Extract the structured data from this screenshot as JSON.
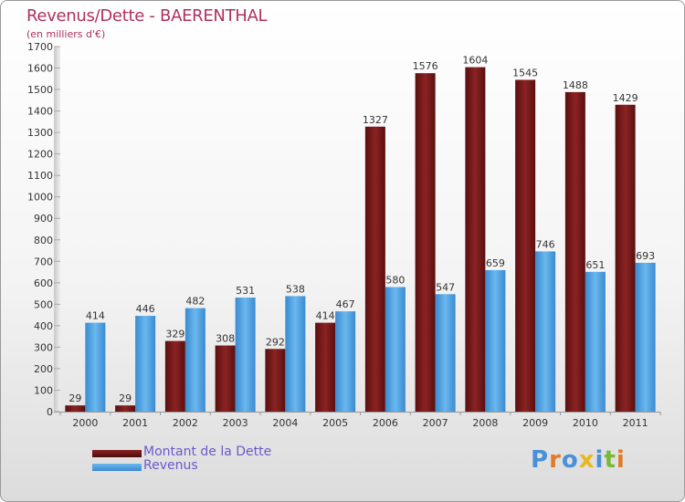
{
  "page": {
    "title": "Revenus/Dette - BAERENTHAL",
    "subtitle": "(en milliers d'€)"
  },
  "legend": {
    "debt_label": "Montant de la Dette",
    "revenue_label": "Revenus"
  },
  "logo": {
    "letters": [
      "P",
      "r",
      "o",
      "x",
      "i",
      "t",
      "i"
    ],
    "colors": [
      "#4a90d9",
      "#e07b28",
      "#4a90d9",
      "#e8b820",
      "#4a90d9",
      "#7ab83a",
      "#e07b28"
    ]
  },
  "colors": {
    "debt": "#7a1818",
    "debt_light": "#9a2a2a",
    "revenue": "#4a9fe0",
    "revenue_light": "#6cb8ee",
    "axis_text": "#333333"
  },
  "chart_data": {
    "type": "bar",
    "title": "Revenus/Dette - BAERENTHAL",
    "subtitle": "(en milliers d'€)",
    "categories": [
      "2000",
      "2001",
      "2002",
      "2003",
      "2004",
      "2005",
      "2006",
      "2007",
      "2008",
      "2009",
      "2010",
      "2011"
    ],
    "series": [
      {
        "name": "Montant de la Dette",
        "values": [
          29,
          29,
          329,
          308,
          292,
          414,
          1327,
          1576,
          1604,
          1545,
          1488,
          1429
        ]
      },
      {
        "name": "Revenus",
        "values": [
          414,
          446,
          482,
          531,
          538,
          467,
          580,
          547,
          659,
          746,
          651,
          693
        ]
      }
    ],
    "ylim": [
      0,
      1700
    ],
    "yticks": [
      0,
      100,
      200,
      300,
      400,
      500,
      600,
      700,
      800,
      900,
      1000,
      1100,
      1200,
      1300,
      1400,
      1500,
      1600,
      1700
    ],
    "grid": false,
    "legend_position": "bottom-left"
  }
}
